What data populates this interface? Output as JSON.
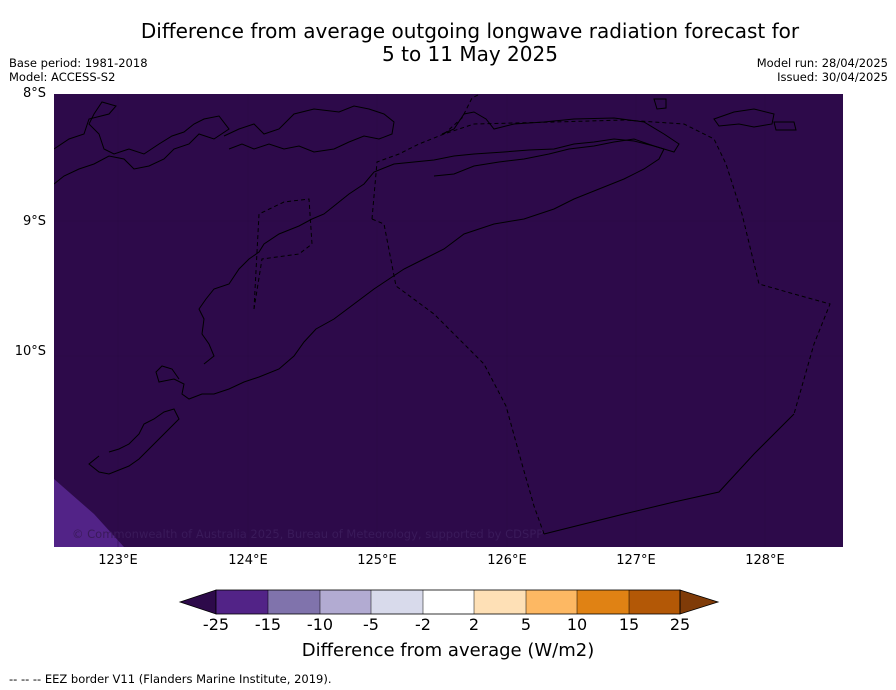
{
  "title_line1": "Difference from average outgoing longwave radiation forecast for",
  "title_line2": "5 to 11 May 2025",
  "meta_left": {
    "base_period": "Base period: 1981-2018",
    "model": "Model: ACCESS-S2"
  },
  "meta_right": {
    "model_run": "Model run: 28/04/2025",
    "issued": "Issued: 30/04/2025"
  },
  "lat_labels": [
    "8°S",
    "9°S",
    "10°S"
  ],
  "lon_labels": [
    "123°E",
    "124°E",
    "125°E",
    "126°E",
    "127°E",
    "128°E"
  ],
  "copyright": "© Commonwealth of Australia 2025, Bureau of Meteorology, supported by CDSPP",
  "colorbar": {
    "ticks": [
      "-25",
      "-15",
      "-10",
      "-5",
      "-2",
      "2",
      "5",
      "10",
      "15",
      "25"
    ],
    "colors": [
      "#2d0a4a",
      "#522387",
      "#8073ac",
      "#b2abd2",
      "#d8daeb",
      "#ffffff",
      "#fee0b6",
      "#fdb863",
      "#e08214",
      "#b35806",
      "#7f3b08"
    ],
    "label": "Difference from average (W/m2)"
  },
  "footer": "--  --  -- EEZ border V11 (Flanders Marine Institute, 2019).",
  "map": {
    "background_color": "#2d0a4a",
    "lat_range": [
      -11.5,
      -8.0
    ],
    "lon_range": [
      122.5,
      128.6
    ],
    "corner_anomaly_color": "#522387"
  }
}
